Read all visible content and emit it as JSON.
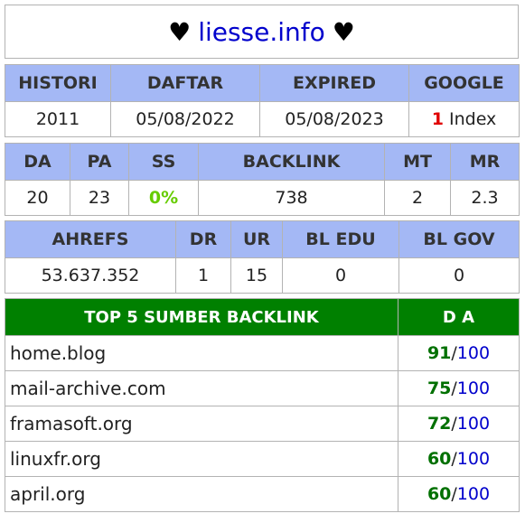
{
  "header": {
    "heart_left": "♥",
    "domain": "liesse.info",
    "heart_right": "♥"
  },
  "table1": {
    "headers": [
      "HISTORI",
      "DAFTAR",
      "EXPIRED",
      "GOOGLE"
    ],
    "values": {
      "histori": "2011",
      "daftar": "05/08/2022",
      "expired": "05/08/2023",
      "google_count": "1",
      "google_label": "Index"
    }
  },
  "table2": {
    "headers": [
      "DA",
      "PA",
      "SS",
      "BACKLINK",
      "MT",
      "MR"
    ],
    "values": [
      "20",
      "23",
      "0%",
      "738",
      "2",
      "2.3"
    ]
  },
  "table3": {
    "headers": [
      "AHREFS",
      "DR",
      "UR",
      "BL EDU",
      "BL GOV"
    ],
    "values": [
      "53.637.352",
      "1",
      "15",
      "0",
      "0"
    ]
  },
  "table4": {
    "headers": [
      "TOP 5 SUMBER BACKLINK",
      "D A"
    ],
    "rows": [
      {
        "site": "home.blog",
        "da": "91",
        "sep": "/",
        "max": "100"
      },
      {
        "site": "mail-archive.com",
        "da": "75",
        "sep": "/",
        "max": "100"
      },
      {
        "site": "framasoft.org",
        "da": "72",
        "sep": "/",
        "max": "100"
      },
      {
        "site": "linuxfr.org",
        "da": "60",
        "sep": "/",
        "max": "100"
      },
      {
        "site": "april.org",
        "da": "60",
        "sep": "/",
        "max": "100"
      }
    ]
  },
  "colors": {
    "header_bg": "#a4b8f5",
    "top5_bg": "#008000",
    "domain": "#0000cc",
    "da_value": "#007000",
    "google_count": "#e00000",
    "ss_value": "#66cc00"
  }
}
